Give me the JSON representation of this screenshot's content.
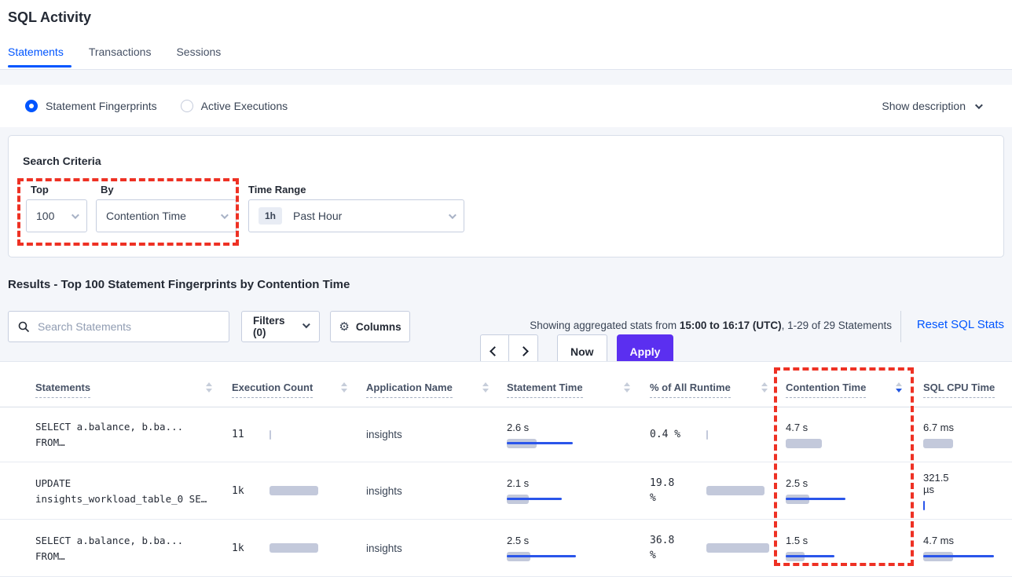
{
  "page": {
    "title": "SQL Activity"
  },
  "tabs": [
    {
      "label": "Statements"
    },
    {
      "label": "Transactions"
    },
    {
      "label": "Sessions"
    }
  ],
  "view_toggle": {
    "options": [
      {
        "label": "Statement Fingerprints",
        "selected": true
      },
      {
        "label": "Active Executions",
        "selected": false
      }
    ],
    "show_description_label": "Show description"
  },
  "search_criteria": {
    "heading": "Search Criteria",
    "top": {
      "label": "Top",
      "value": "100"
    },
    "by": {
      "label": "By",
      "value": "Contention Time"
    },
    "time_range": {
      "label": "Time Range",
      "badge": "1h",
      "value": "Past Hour"
    },
    "now_label": "Now",
    "apply_label": "Apply"
  },
  "results": {
    "heading": "Results - Top 100 Statement Fingerprints by Contention Time",
    "search_placeholder": "Search Statements",
    "filters_label": "Filters (0)",
    "columns_label": "Columns",
    "stats_prefix": "Showing aggregated stats from ",
    "stats_bold": "15:00 to 16:17 (UTC)",
    "stats_suffix": ", 1-29 of 29 Statements",
    "reset_label": "Reset SQL Stats"
  },
  "table": {
    "headers": [
      {
        "label": "Statements",
        "sort": "none"
      },
      {
        "label": "Execution Count",
        "sort": "none"
      },
      {
        "label": "Application Name",
        "sort": "none"
      },
      {
        "label": "Statement Time",
        "sort": "none"
      },
      {
        "label": "% of All Runtime",
        "sort": "none"
      },
      {
        "label": "Contention Time",
        "sort": "desc"
      },
      {
        "label": "SQL CPU Time",
        "sort": "none"
      }
    ],
    "rows": [
      {
        "statement": [
          "SELECT a.balance, b.ba...",
          "FROM…"
        ],
        "execution_count": {
          "lines": [
            "11"
          ],
          "bar": 2,
          "line": 0
        },
        "app_name": "insights",
        "statement_time": {
          "lines": [
            "2.6 s"
          ],
          "bar": 38,
          "line": 84
        },
        "pct_runtime": {
          "lines": [
            "0.4 %"
          ],
          "bar": 2,
          "line": 0
        },
        "contention_time": {
          "lines": [
            "4.7 s"
          ],
          "bar": 46,
          "line": 0
        },
        "sql_cpu_time": {
          "lines": [
            "6.7 ms"
          ],
          "bar": 38,
          "line": 0
        }
      },
      {
        "statement": [
          "UPDATE",
          "insights_workload_table_0 SE…"
        ],
        "execution_count": {
          "lines": [
            "1k"
          ],
          "bar": 62,
          "line": 0
        },
        "app_name": "insights",
        "statement_time": {
          "lines": [
            "2.1 s"
          ],
          "bar": 28,
          "line": 70
        },
        "pct_runtime": {
          "lines": [
            "19.8",
            "%"
          ],
          "bar": 74,
          "line": 0
        },
        "contention_time": {
          "lines": [
            "2.5 s"
          ],
          "bar": 30,
          "line": 76
        },
        "sql_cpu_time": {
          "lines": [
            "321.5",
            "µs"
          ],
          "bar": 2,
          "line": 0,
          "bar_color": "blue"
        }
      },
      {
        "statement": [
          "SELECT a.balance, b.ba...",
          "FROM…"
        ],
        "execution_count": {
          "lines": [
            "1k"
          ],
          "bar": 62,
          "line": 0
        },
        "app_name": "insights",
        "statement_time": {
          "lines": [
            "2.5 s"
          ],
          "bar": 30,
          "line": 88
        },
        "pct_runtime": {
          "lines": [
            "36.8",
            "%"
          ],
          "bar": 80,
          "line": 0
        },
        "contention_time": {
          "lines": [
            "1.5 s"
          ],
          "bar": 24,
          "line": 62
        },
        "sql_cpu_time": {
          "lines": [
            "4.7 ms"
          ],
          "bar": 38,
          "line": 90
        }
      }
    ]
  },
  "colors": {
    "accent_blue": "#0055ff",
    "apply_purple": "#5b2ff0",
    "annotation_red": "#ee3124",
    "bar_gray": "#c3c9db",
    "bar_blue": "#2a55ea"
  }
}
